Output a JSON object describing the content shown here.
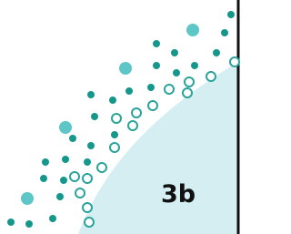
{
  "region": {
    "label": "3b"
  }
}
